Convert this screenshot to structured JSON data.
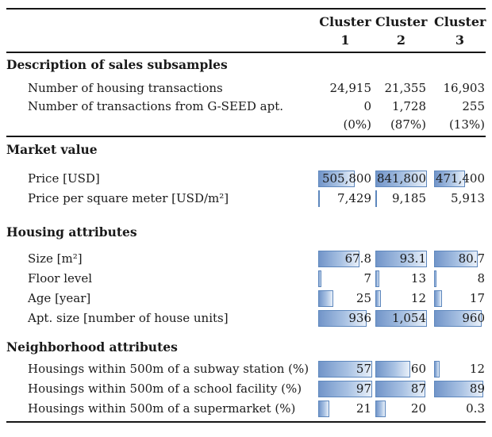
{
  "colors": {
    "bar_border": "#5d87bd",
    "bar_fill_left": "#7295c9",
    "bar_fill_right": "#e9f0f9",
    "rule": "#161616",
    "text": "#1a1a1a"
  },
  "header": {
    "columns": [
      {
        "word": "Cluster",
        "num": "1"
      },
      {
        "word": "Cluster",
        "num": "2"
      },
      {
        "word": "Cluster",
        "num": "3"
      }
    ]
  },
  "sections": [
    {
      "id": "description",
      "title": "Description of sales subsamples",
      "rows": [
        {
          "label": "Number of housing transactions",
          "values": [
            "24,915",
            "21,355",
            "16,903"
          ],
          "bars": null
        },
        {
          "label": "Number of transactions from G-SEED apt.",
          "values": [
            "0",
            "1,728",
            "255"
          ],
          "bars": null
        },
        {
          "label": "",
          "values": [
            "(0%)",
            "(87%)",
            "(13%)"
          ],
          "bars": null
        }
      ],
      "rule_after": true
    },
    {
      "id": "market",
      "title": "Market value",
      "rows": [
        {
          "label": "Price [USD]",
          "values": [
            "505,800",
            "841,800",
            "471,400"
          ],
          "bars": [
            67,
            100,
            60
          ]
        },
        {
          "label": "Price per square meter [USD/m²]",
          "values": [
            "7,429",
            "9,185",
            "5,913"
          ],
          "bars": [
            3,
            3,
            0
          ]
        }
      ],
      "rule_after": false
    },
    {
      "id": "housing",
      "title": "Housing attributes",
      "rows": [
        {
          "label": "Size [m²]",
          "values": [
            "67.8",
            "93.1",
            "80.7"
          ],
          "bars": [
            77,
            100,
            84
          ]
        },
        {
          "label": "Floor level",
          "values": [
            "7",
            "13",
            "8"
          ],
          "bars": [
            6,
            8,
            5
          ]
        },
        {
          "label": "Age [year]",
          "values": [
            "25",
            "12",
            "17"
          ],
          "bars": [
            28,
            11,
            16
          ]
        },
        {
          "label": "Apt. size [number of house units]",
          "values": [
            "936",
            "1,054",
            "960"
          ],
          "bars": [
            89,
            100,
            92
          ]
        }
      ],
      "rule_after": false
    },
    {
      "id": "neighborhood",
      "title": "Neighborhood attributes",
      "rows": [
        {
          "label": "Housings within 500m of a subway station (%)",
          "values": [
            "57",
            "60",
            "12"
          ],
          "bars": [
            100,
            67,
            10
          ]
        },
        {
          "label": "Housings within 500m of a school facility (%)",
          "values": [
            "97",
            "87",
            "89"
          ],
          "bars": [
            100,
            97,
            95
          ]
        },
        {
          "label": "Housings within 500m of a supermarket (%)",
          "values": [
            "21",
            "20",
            "0.3"
          ],
          "bars": [
            21,
            20,
            0
          ]
        }
      ],
      "rule_after": false
    }
  ]
}
